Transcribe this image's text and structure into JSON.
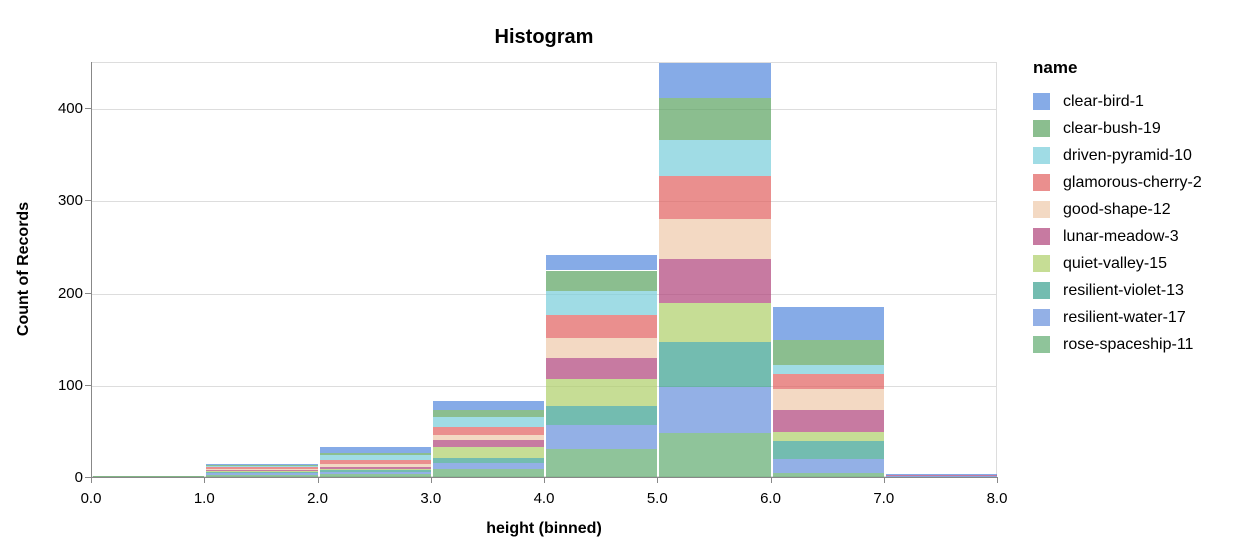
{
  "chart_data": {
    "type": "bar",
    "subtype": "stacked-histogram",
    "title": "Histogram",
    "xlabel": "height (binned)",
    "ylabel": "Count of Records",
    "legend_title": "name",
    "legend_position": "right",
    "grid": true,
    "x_tick_labels": [
      "0.0",
      "1.0",
      "2.0",
      "3.0",
      "4.0",
      "5.0",
      "6.0",
      "7.0",
      "8.0"
    ],
    "y_tick_values": [
      0,
      100,
      200,
      300,
      400
    ],
    "ylim": [
      0,
      450
    ],
    "xlim": [
      0,
      8
    ],
    "bin_edges": [
      0,
      1,
      2,
      3,
      4,
      5,
      6,
      7,
      8
    ],
    "stack_order": "first-series-on-top",
    "series": [
      {
        "name": "clear-bird-1",
        "color": "#5387dd",
        "values": [
          0,
          1,
          7,
          9,
          17,
          38,
          35,
          1
        ]
      },
      {
        "name": "clear-bush-19",
        "color": "#5aa25f",
        "values": [
          1,
          1,
          2,
          8,
          22,
          45,
          27,
          0
        ]
      },
      {
        "name": "driven-pyramid-10",
        "color": "#78cdda",
        "values": [
          0,
          1,
          6,
          11,
          26,
          40,
          10,
          0
        ]
      },
      {
        "name": "glamorous-cherry-2",
        "color": "#e15f5e",
        "values": [
          0,
          2,
          4,
          8,
          25,
          46,
          17,
          0
        ]
      },
      {
        "name": "good-shape-12",
        "color": "#eec9a9",
        "values": [
          0,
          1,
          3,
          6,
          22,
          44,
          22,
          0
        ]
      },
      {
        "name": "lunar-meadow-3",
        "color": "#af4179",
        "values": [
          0,
          1,
          2,
          7,
          23,
          47,
          24,
          1
        ]
      },
      {
        "name": "quiet-valley-15",
        "color": "#aece68",
        "values": [
          1,
          1,
          1,
          12,
          29,
          43,
          10,
          0
        ]
      },
      {
        "name": "resilient-violet-13",
        "color": "#38a08f",
        "values": [
          0,
          2,
          2,
          6,
          21,
          48,
          19,
          0
        ]
      },
      {
        "name": "resilient-water-17",
        "color": "#658edb",
        "values": [
          0,
          2,
          3,
          6,
          26,
          50,
          16,
          2
        ]
      },
      {
        "name": "rose-spaceship-11",
        "color": "#60ab6f",
        "values": [
          0,
          3,
          4,
          10,
          31,
          49,
          5,
          0
        ]
      }
    ],
    "colors": {
      "grid": "#dddddd",
      "plot_border": "#dddddd",
      "axis_line": "#888888",
      "label_text": "#000000",
      "background": "#ffffff"
    }
  }
}
